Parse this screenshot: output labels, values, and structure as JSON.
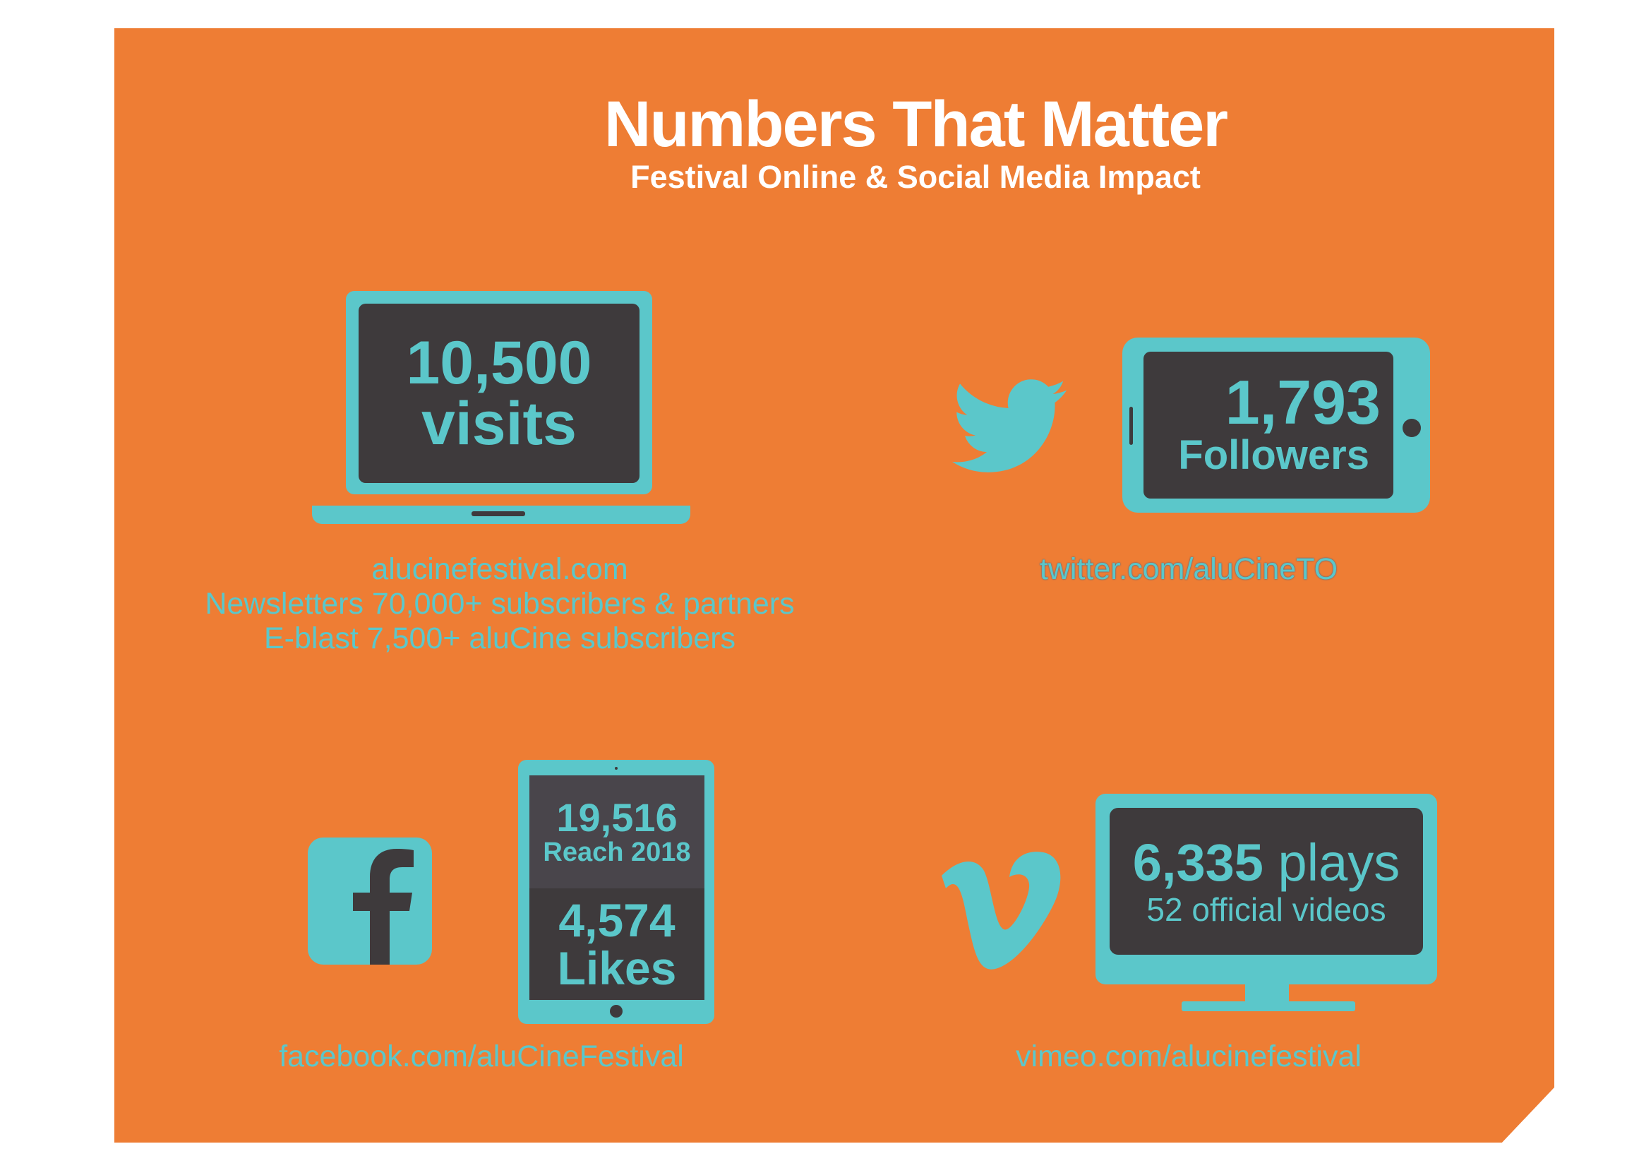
{
  "header": {
    "title": "Numbers That Matter",
    "subtitle": "Festival Online & Social Media Impact"
  },
  "colors": {
    "background": "#ee7d34",
    "accent": "#5bc7ca",
    "screen": "#3e3a3c",
    "text": "#ffffff"
  },
  "website": {
    "value": "10,500",
    "unit": "visits",
    "lines": [
      "alucinefestival.com",
      "Newsletters 70,000+ subscribers & partners",
      "E-blast 7,500+ aluCine subscribers"
    ],
    "icon": "laptop-icon"
  },
  "twitter": {
    "value": "1,793",
    "unit": "Followers",
    "link": "twitter.com/aluCineTO",
    "icon": "twitter-bird-icon"
  },
  "facebook": {
    "reach_value": "19,516",
    "reach_label": "Reach 2018",
    "likes_value": "4,574",
    "likes_label": "Likes",
    "link": "facebook.com/aluCineFestival",
    "icon": "facebook-icon"
  },
  "vimeo": {
    "value": "6,335",
    "unit": "plays",
    "videos": "52 official videos",
    "link": "vimeo.com/alucinefestival",
    "icon": "vimeo-icon"
  }
}
